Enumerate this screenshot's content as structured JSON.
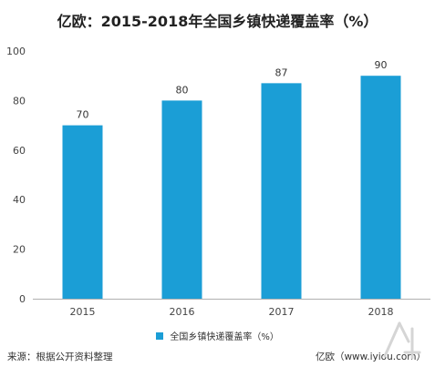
{
  "title": "亿欧：2015-2018年全国乡镇快递覆盖率（%）",
  "legend_label": "全国乡镇快递覆盖率（%）",
  "footer": {
    "source": "来源：根据公开资料整理",
    "brand": "亿欧（www.iyiou.com）"
  },
  "colors": {
    "bar": "#1b9ed6",
    "axis": "#b0b0b0",
    "grid": "#e6e6e6",
    "watermark": "#d5d5d5"
  },
  "chart_data": {
    "type": "bar",
    "title": "亿欧：2015-2018年全国乡镇快递覆盖率（%）",
    "categories": [
      "2015",
      "2016",
      "2017",
      "2018"
    ],
    "series": [
      {
        "name": "全国乡镇快递覆盖率（%）",
        "values": [
          70,
          80,
          87,
          90
        ]
      }
    ],
    "data_labels": [
      "70",
      "80",
      "87",
      "90"
    ],
    "ylim": [
      0,
      100
    ],
    "yticks": [
      0,
      20,
      40,
      60,
      80,
      100
    ],
    "xlabel": "",
    "ylabel": "",
    "grid": false,
    "legend_position": "bottom"
  }
}
